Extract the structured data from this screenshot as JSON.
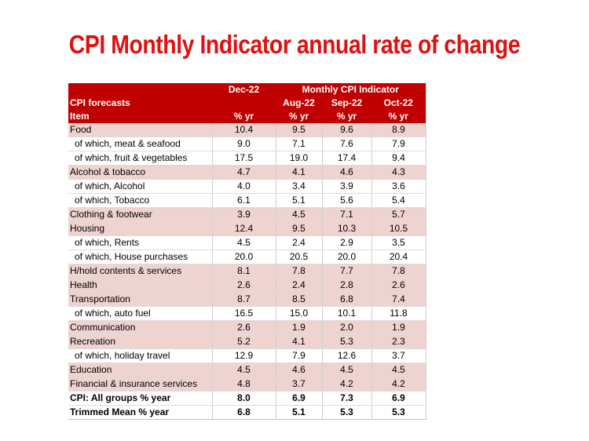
{
  "title": "CPI Monthly Indicator annual rate of change",
  "header": {
    "row1": [
      "",
      "Dec-22",
      "Monthly CPI Indicator"
    ],
    "row2": [
      "CPI forecasts",
      "",
      "Aug-22",
      "Sep-22",
      "Oct-22"
    ],
    "row3": [
      "Item",
      "% yr",
      "% yr",
      "% yr",
      "% yr"
    ]
  },
  "chart_data": {
    "type": "table",
    "title": "CPI Monthly Indicator annual rate of change",
    "columns": [
      "Dec-22",
      "Aug-22",
      "Sep-22",
      "Oct-22"
    ],
    "rows": [
      {
        "label": "Food",
        "values": [
          "10.4",
          "9.5",
          "9.6",
          "8.9"
        ],
        "style": "shade"
      },
      {
        "label": "of which, meat & seafood",
        "values": [
          "9.0",
          "7.1",
          "7.6",
          "7.9"
        ],
        "style": "sub"
      },
      {
        "label": "of which, fruit & vegetables",
        "values": [
          "17.5",
          "19.0",
          "17.4",
          "9.4"
        ],
        "style": "sub"
      },
      {
        "label": "Alcohol & tobacco",
        "values": [
          "4.7",
          "4.1",
          "4.6",
          "4.3"
        ],
        "style": "shade"
      },
      {
        "label": "of which, Alcohol",
        "values": [
          "4.0",
          "3.4",
          "3.9",
          "3.6"
        ],
        "style": "sub"
      },
      {
        "label": "of which, Tobacco",
        "values": [
          "6.1",
          "5.1",
          "5.6",
          "5.4"
        ],
        "style": "sub"
      },
      {
        "label": "Clothing & footwear",
        "values": [
          "3.9",
          "4.5",
          "7.1",
          "5.7"
        ],
        "style": "shade"
      },
      {
        "label": "Housing",
        "values": [
          "12.4",
          "9.5",
          "10.3",
          "10.5"
        ],
        "style": "shade"
      },
      {
        "label": "of which, Rents",
        "values": [
          "4.5",
          "2.4",
          "2.9",
          "3.5"
        ],
        "style": "sub"
      },
      {
        "label": "of which, House purchases",
        "values": [
          "20.0",
          "20.5",
          "20.0",
          "20.4"
        ],
        "style": "sub"
      },
      {
        "label": "H/hold contents & services",
        "values": [
          "8.1",
          "7.8",
          "7.7",
          "7.8"
        ],
        "style": "shade"
      },
      {
        "label": "Health",
        "values": [
          "2.6",
          "2.4",
          "2.8",
          "2.6"
        ],
        "style": "shade"
      },
      {
        "label": "Transportation",
        "values": [
          "8.7",
          "8.5",
          "6.8",
          "7.4"
        ],
        "style": "shade"
      },
      {
        "label": "of which, auto fuel",
        "values": [
          "16.5",
          "15.0",
          "10.1",
          "11.8"
        ],
        "style": "sub"
      },
      {
        "label": "Communication",
        "values": [
          "2.6",
          "1.9",
          "2.0",
          "1.9"
        ],
        "style": "shade"
      },
      {
        "label": "Recreation",
        "values": [
          "5.2",
          "4.1",
          "5.3",
          "2.3"
        ],
        "style": "shade"
      },
      {
        "label": "of which, holiday travel",
        "values": [
          "12.9",
          "7.9",
          "12.6",
          "3.7"
        ],
        "style": "sub"
      },
      {
        "label": "Education",
        "values": [
          "4.5",
          "4.6",
          "4.5",
          "4.5"
        ],
        "style": "shade"
      },
      {
        "label": "Financial & insurance services",
        "values": [
          "4.8",
          "3.7",
          "4.2",
          "4.2"
        ],
        "style": "shade"
      },
      {
        "label": "CPI: All groups % year",
        "values": [
          "8.0",
          "6.9",
          "7.3",
          "6.9"
        ],
        "style": "bold"
      },
      {
        "label": "Trimmed Mean  % year",
        "values": [
          "6.8",
          "5.1",
          "5.3",
          "5.3"
        ],
        "style": "bold"
      }
    ]
  },
  "colors": {
    "title": "#e01010",
    "header_bg": "#c00000",
    "shade_bg": "#eed3cf"
  }
}
